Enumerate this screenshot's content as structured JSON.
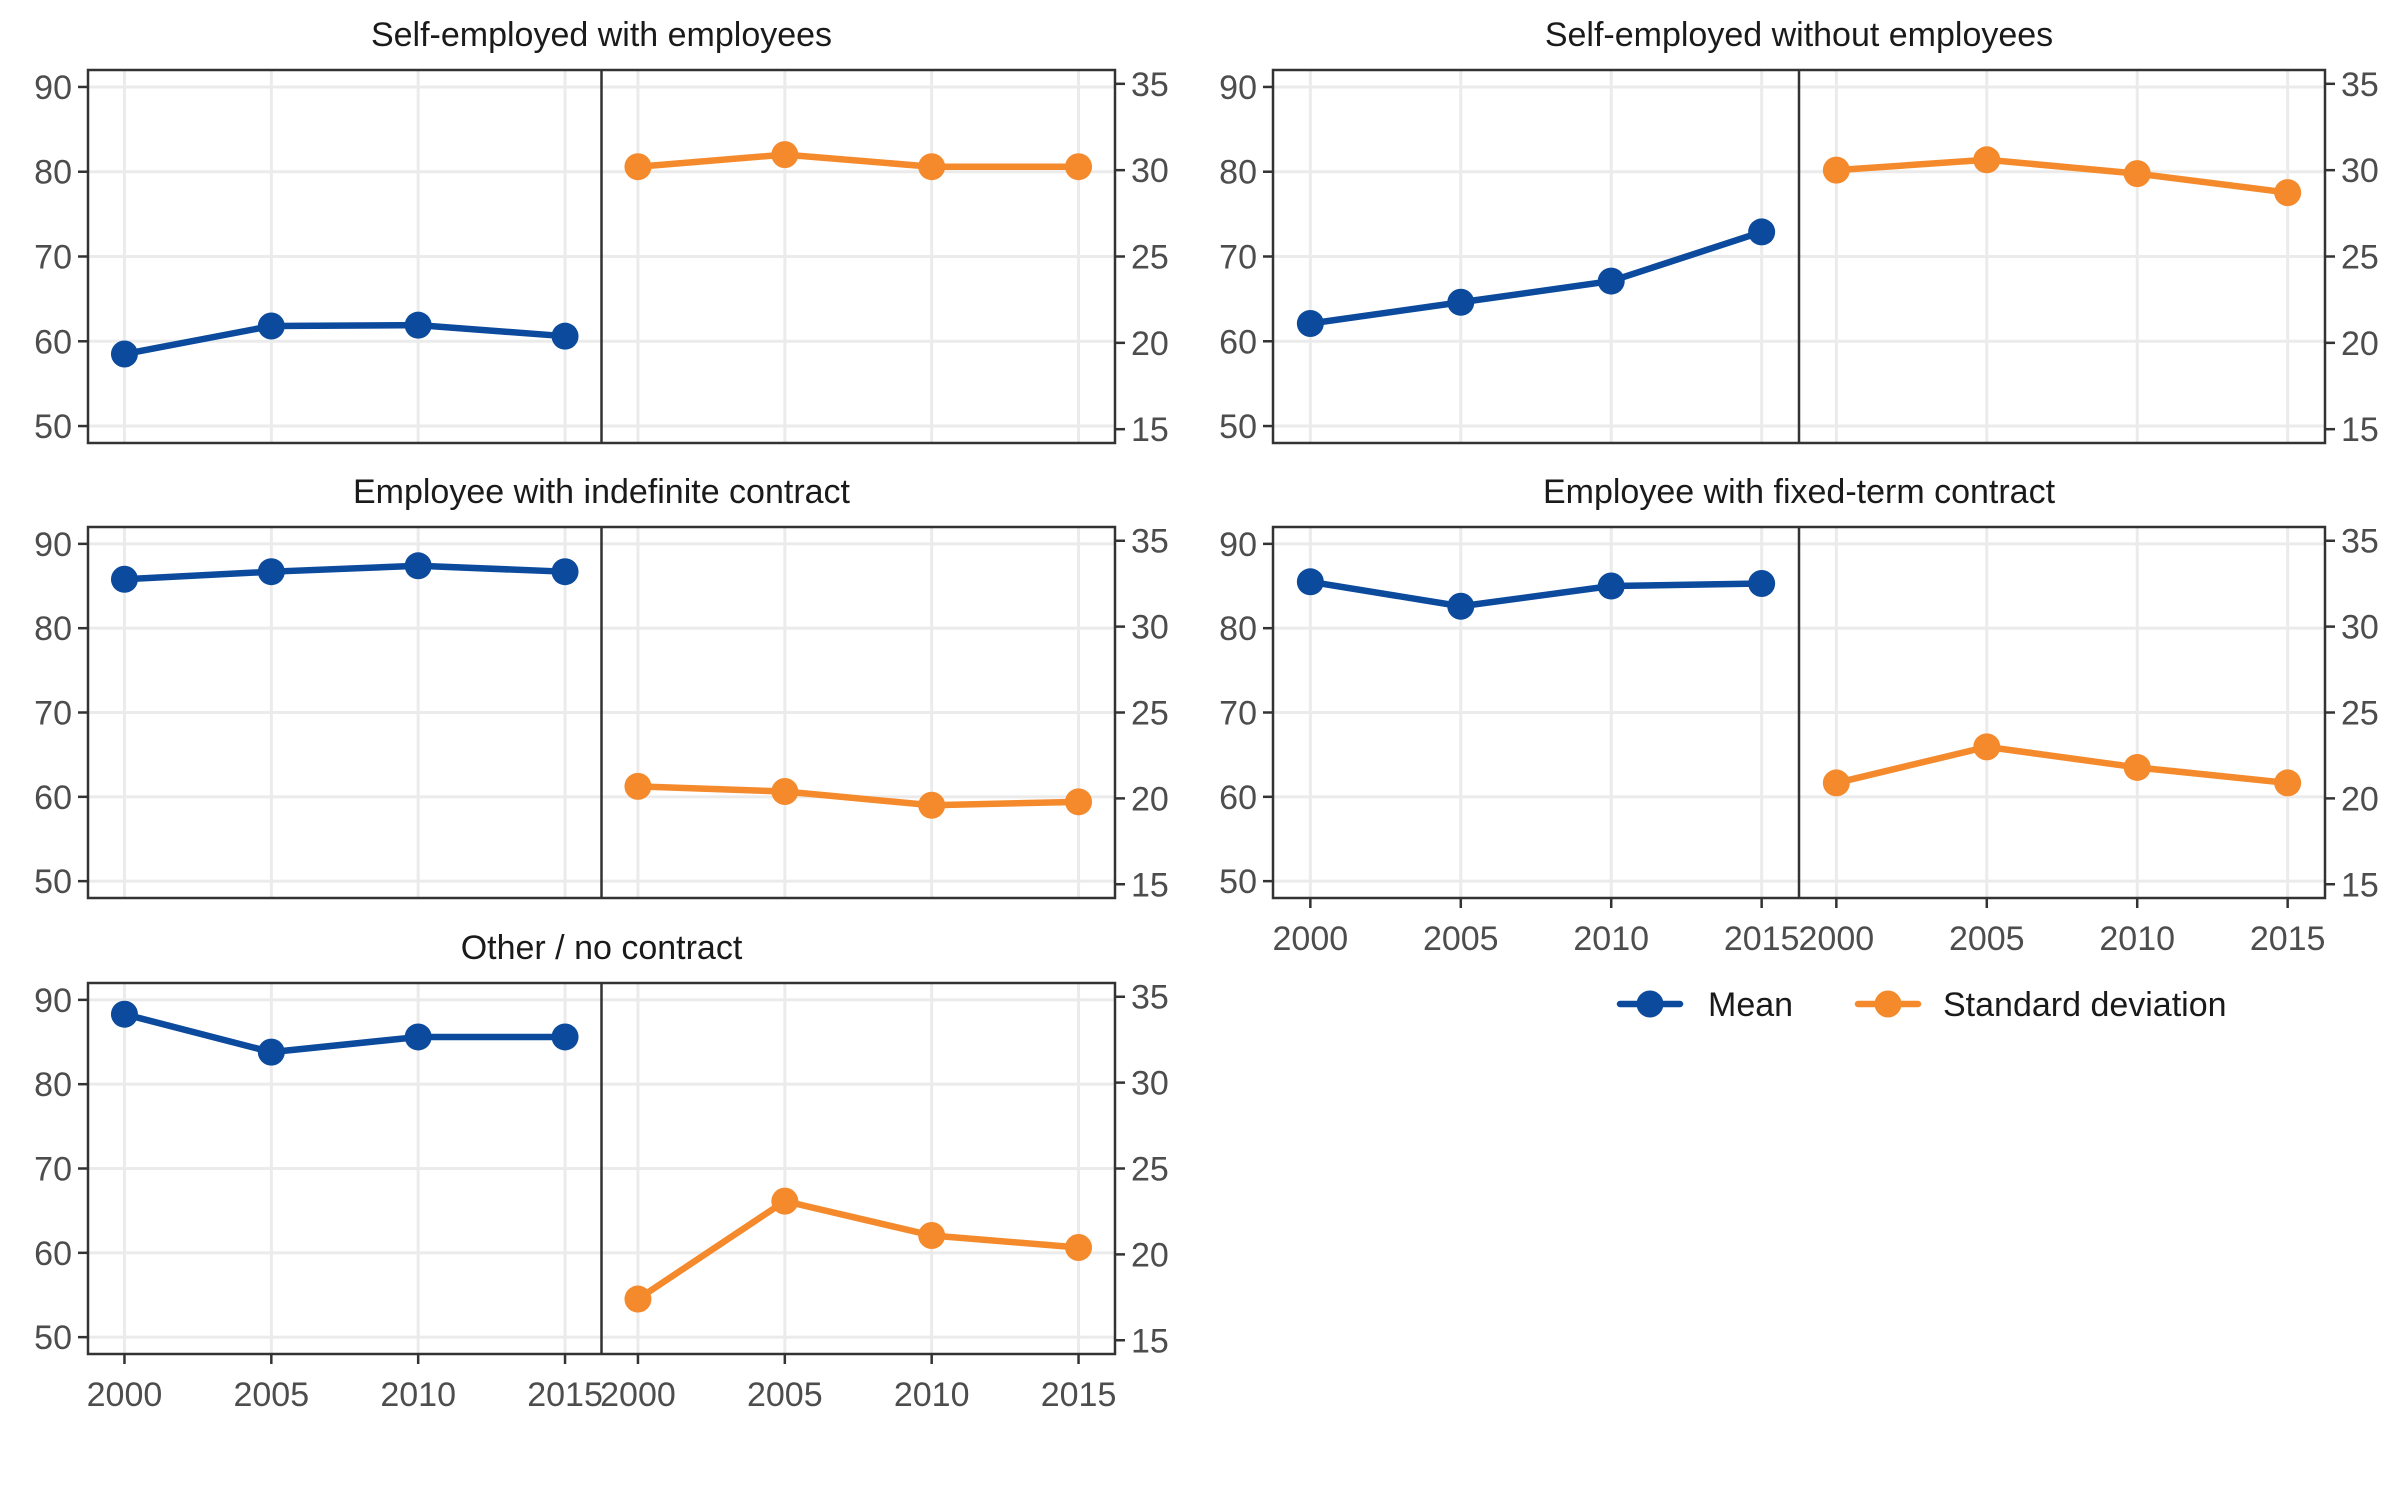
{
  "chart_data": {
    "type": "line",
    "x": [
      2000,
      2005,
      2010,
      2015
    ],
    "left_axis": {
      "ylim": [
        48,
        92
      ],
      "ticks": [
        50,
        60,
        70,
        80,
        90
      ]
    },
    "right_axis": {
      "ylim": [
        14.2,
        35.8
      ],
      "ticks": [
        15,
        20,
        25,
        30,
        35
      ]
    },
    "grid": true,
    "legend_position": "bottom-right",
    "legend": [
      {
        "label": "Mean",
        "color": "#0B4A9C",
        "axis": "left"
      },
      {
        "label": "Standard deviation",
        "color": "#F58A2C",
        "axis": "right"
      }
    ],
    "panels": [
      {
        "title": "Self-employed with employees",
        "series": [
          {
            "name": "Mean",
            "values": [
              58.5,
              61.8,
              61.9,
              60.6
            ]
          },
          {
            "name": "Standard deviation",
            "values": [
              30.2,
              30.9,
              30.2,
              30.2
            ]
          }
        ]
      },
      {
        "title": "Self-employed without employees",
        "series": [
          {
            "name": "Mean",
            "values": [
              62.1,
              64.6,
              67.1,
              72.9
            ]
          },
          {
            "name": "Standard deviation",
            "values": [
              30.0,
              30.6,
              29.8,
              28.7
            ]
          }
        ]
      },
      {
        "title": "Employee with indefinite contract",
        "series": [
          {
            "name": "Mean",
            "values": [
              85.8,
              86.7,
              87.4,
              86.7
            ]
          },
          {
            "name": "Standard deviation",
            "values": [
              20.7,
              20.4,
              19.6,
              19.8
            ]
          }
        ]
      },
      {
        "title": "Employee with fixed-term contract",
        "series": [
          {
            "name": "Mean",
            "values": [
              85.5,
              82.6,
              85.0,
              85.3
            ]
          },
          {
            "name": "Standard deviation",
            "values": [
              20.9,
              23.0,
              21.8,
              20.9
            ]
          }
        ]
      },
      {
        "title": "Other / no contract",
        "series": [
          {
            "name": "Mean",
            "values": [
              88.3,
              83.8,
              85.6,
              85.6
            ]
          },
          {
            "name": "Standard deviation",
            "values": [
              17.4,
              23.1,
              21.1,
              20.4
            ]
          }
        ]
      }
    ]
  }
}
